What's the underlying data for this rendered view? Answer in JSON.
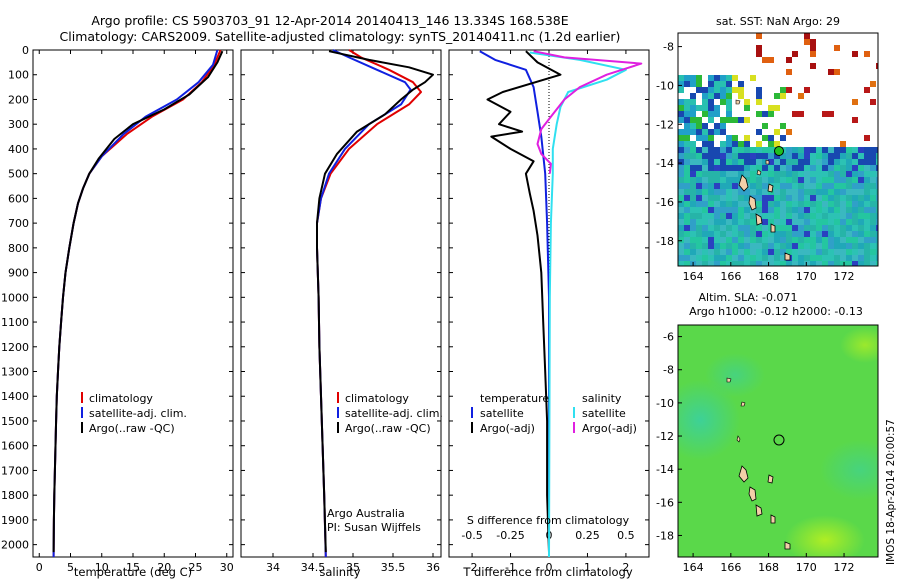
{
  "figure": {
    "title_line1": "Argo profile: CS 5903703_91 12-Apr-2014 20140413_146 13.334S 168.538E",
    "title_line2": "Climatology: CARS2009. Satellite-adjusted climatology: synTS_20140411.nc (1.2d earlier)",
    "credit_org": "Argo Australia",
    "credit_pi": "PI: Susan Wijffels",
    "timestamp": "IMOS 18-Apr-2014 20:00:57"
  },
  "colors": {
    "climatology": "#e00000",
    "satellite": "#1020e0",
    "argo": "#000000",
    "sat_salinity": "#30e0f0",
    "argo_salinity": "#e020e0"
  },
  "chart_data": [
    {
      "id": "temperature",
      "type": "line",
      "xlabel": "temperature (deg C)",
      "ylim": [
        2050,
        0
      ],
      "xlim": [
        -1,
        31
      ],
      "xticks": [
        0,
        5,
        10,
        15,
        20,
        25,
        30
      ],
      "yticks": [
        0,
        100,
        200,
        300,
        400,
        500,
        600,
        700,
        800,
        900,
        1000,
        1100,
        1200,
        1300,
        1400,
        1500,
        1600,
        1700,
        1800,
        1900,
        2000
      ],
      "legend": [
        "climatology",
        "satellite-adj. clim.",
        "Argo(..raw -QC)"
      ],
      "series": [
        {
          "name": "climatology",
          "color": "#e00000",
          "points": [
            [
              29,
              0
            ],
            [
              28,
              60
            ],
            [
              26,
              130
            ],
            [
              23,
              200
            ],
            [
              18,
              270
            ],
            [
              14,
              340
            ],
            [
              10,
              430
            ],
            [
              8,
              500
            ],
            [
              7,
              560
            ],
            [
              6.2,
              620
            ],
            [
              5.5,
              700
            ],
            [
              4.8,
              800
            ],
            [
              4.2,
              900
            ],
            [
              3.8,
              1000
            ],
            [
              3.5,
              1100
            ],
            [
              3.2,
              1200
            ],
            [
              3,
              1300
            ],
            [
              2.8,
              1400
            ],
            [
              2.7,
              1500
            ],
            [
              2.6,
              1600
            ],
            [
              2.5,
              1700
            ],
            [
              2.4,
              1800
            ],
            [
              2.35,
              1900
            ],
            [
              2.3,
              2050
            ]
          ]
        },
        {
          "name": "satellite-adj. clim.",
          "color": "#1020e0",
          "points": [
            [
              28.5,
              0
            ],
            [
              27.8,
              60
            ],
            [
              25.5,
              130
            ],
            [
              22,
              200
            ],
            [
              17,
              270
            ],
            [
              13.5,
              340
            ],
            [
              10,
              430
            ],
            [
              8,
              500
            ],
            [
              7,
              560
            ],
            [
              6.2,
              620
            ],
            [
              5.5,
              700
            ],
            [
              4.8,
              800
            ],
            [
              4.2,
              900
            ],
            [
              3.8,
              1000
            ],
            [
              3.5,
              1100
            ],
            [
              3.2,
              1200
            ],
            [
              3,
              1300
            ],
            [
              2.8,
              1400
            ],
            [
              2.7,
              1500
            ],
            [
              2.6,
              1600
            ],
            [
              2.5,
              1700
            ],
            [
              2.4,
              1800
            ],
            [
              2.35,
              1900
            ],
            [
              2.3,
              2050
            ]
          ]
        },
        {
          "name": "Argo(..raw -QC)",
          "color": "#000000",
          "points": [
            [
              29.3,
              5
            ],
            [
              28.5,
              50
            ],
            [
              27,
              110
            ],
            [
              24,
              180
            ],
            [
              20,
              240
            ],
            [
              15,
              300
            ],
            [
              12,
              360
            ],
            [
              9.5,
              440
            ],
            [
              8,
              500
            ],
            [
              7,
              560
            ],
            [
              6.2,
              620
            ],
            [
              5.5,
              700
            ],
            [
              4.8,
              800
            ],
            [
              4.2,
              900
            ],
            [
              3.8,
              1000
            ],
            [
              3.5,
              1100
            ],
            [
              3.2,
              1200
            ],
            [
              3,
              1300
            ],
            [
              2.8,
              1400
            ],
            [
              2.7,
              1500
            ],
            [
              2.6,
              1600
            ],
            [
              2.5,
              1700
            ],
            [
              2.4,
              1800
            ],
            [
              2.35,
              1900
            ],
            [
              2.3,
              2030
            ]
          ]
        }
      ]
    },
    {
      "id": "salinity",
      "type": "line",
      "xlabel": "salinity",
      "ylim": [
        2050,
        0
      ],
      "xlim": [
        33.6,
        36.1
      ],
      "xticks": [
        34,
        34.5,
        35,
        35.5,
        36
      ],
      "legend": [
        "climatology",
        "satellite-adj. clim.",
        "Argo(..raw -QC)"
      ],
      "series": [
        {
          "name": "climatology",
          "color": "#e00000",
          "points": [
            [
              34.95,
              0
            ],
            [
              35.1,
              30
            ],
            [
              35.45,
              80
            ],
            [
              35.75,
              130
            ],
            [
              35.85,
              170
            ],
            [
              35.7,
              220
            ],
            [
              35.3,
              300
            ],
            [
              34.95,
              400
            ],
            [
              34.72,
              500
            ],
            [
              34.6,
              600
            ],
            [
              34.55,
              700
            ],
            [
              34.55,
              800
            ],
            [
              34.56,
              900
            ],
            [
              34.57,
              1000
            ],
            [
              34.58,
              1200
            ],
            [
              34.6,
              1400
            ],
            [
              34.62,
              1600
            ],
            [
              34.64,
              1800
            ],
            [
              34.66,
              2050
            ]
          ]
        },
        {
          "name": "satellite-adj. clim.",
          "color": "#1020e0",
          "points": [
            [
              34.75,
              0
            ],
            [
              34.95,
              30
            ],
            [
              35.3,
              80
            ],
            [
              35.65,
              130
            ],
            [
              35.72,
              160
            ],
            [
              35.6,
              220
            ],
            [
              35.2,
              300
            ],
            [
              34.9,
              400
            ],
            [
              34.7,
              500
            ],
            [
              34.6,
              600
            ],
            [
              34.55,
              700
            ],
            [
              34.55,
              800
            ],
            [
              34.56,
              900
            ],
            [
              34.57,
              1000
            ],
            [
              34.58,
              1200
            ],
            [
              34.6,
              1400
            ],
            [
              34.62,
              1600
            ],
            [
              34.64,
              1800
            ],
            [
              34.66,
              2050
            ]
          ]
        },
        {
          "name": "Argo(..raw -QC)",
          "color": "#000000",
          "points": [
            [
              34.7,
              5
            ],
            [
              35.2,
              40
            ],
            [
              35.7,
              70
            ],
            [
              36,
              100
            ],
            [
              35.9,
              130
            ],
            [
              35.75,
              160
            ],
            [
              35.6,
              200
            ],
            [
              35.4,
              260
            ],
            [
              35.05,
              330
            ],
            [
              34.8,
              420
            ],
            [
              34.65,
              500
            ],
            [
              34.58,
              600
            ],
            [
              34.55,
              700
            ],
            [
              34.55,
              800
            ],
            [
              34.56,
              900
            ],
            [
              34.57,
              1000
            ],
            [
              34.58,
              1200
            ],
            [
              34.6,
              1400
            ],
            [
              34.62,
              1600
            ],
            [
              34.64,
              1800
            ],
            [
              34.66,
              2030
            ]
          ]
        }
      ]
    },
    {
      "id": "difference",
      "type": "line",
      "xlabel_bottom": "T difference from climatology",
      "xlabel_top": "S difference from climatology",
      "ylim": [
        2050,
        0
      ],
      "xlim": [
        -2.6,
        2.6
      ],
      "xticks_T": [
        -2,
        -1,
        0,
        1,
        2
      ],
      "xticks_S_labels": [
        "-0.5",
        "-0.25",
        "0",
        "0.25",
        "0.5"
      ],
      "xticks_S_positions": [
        -2,
        -1,
        0,
        1,
        2
      ],
      "legend": {
        "temperature_heading": "temperature",
        "salinity_heading": "salinity",
        "t_sat": "satellite",
        "t_argo": "Argo(-adj)",
        "s_sat": "satellite",
        "s_argo": "Argo(-adj)"
      },
      "series": [
        {
          "name": "T satellite",
          "color": "#1020e0",
          "points": [
            [
              -1.8,
              5
            ],
            [
              -1.4,
              40
            ],
            [
              -0.6,
              80
            ],
            [
              -0.4,
              150
            ],
            [
              -0.3,
              250
            ],
            [
              -0.2,
              350
            ],
            [
              -0.1,
              500
            ],
            [
              -0.05,
              700
            ],
            [
              0,
              1000
            ],
            [
              0,
              2050
            ]
          ]
        },
        {
          "name": "T Argo(-adj)",
          "color": "#000000",
          "points": [
            [
              -0.6,
              5
            ],
            [
              -0.3,
              50
            ],
            [
              0.3,
              100
            ],
            [
              -1.2,
              170
            ],
            [
              -1.6,
              200
            ],
            [
              -1,
              250
            ],
            [
              -1.3,
              300
            ],
            [
              -0.7,
              330
            ],
            [
              -1.5,
              350
            ],
            [
              -1,
              400
            ],
            [
              -0.4,
              450
            ],
            [
              -0.6,
              500
            ],
            [
              -0.5,
              580
            ],
            [
              -0.4,
              650
            ],
            [
              -0.3,
              750
            ],
            [
              -0.2,
              900
            ],
            [
              -0.15,
              1100
            ],
            [
              -0.1,
              1300
            ],
            [
              -0.05,
              1500
            ],
            [
              -0.05,
              1800
            ],
            [
              0,
              2030
            ]
          ]
        },
        {
          "name": "S satellite",
          "color": "#30e0f0",
          "points": [
            [
              -0.5,
              10
            ],
            [
              0.8,
              40
            ],
            [
              2,
              80
            ],
            [
              1.5,
              120
            ],
            [
              0.5,
              170
            ],
            [
              0.3,
              230
            ],
            [
              0.2,
              300
            ],
            [
              0.1,
              400
            ],
            [
              0.1,
              500
            ],
            [
              0.05,
              700
            ],
            [
              0.02,
              1000
            ],
            [
              0,
              2050
            ]
          ]
        },
        {
          "name": "S Argo(-adj)",
          "color": "#e020e0",
          "points": [
            [
              -0.4,
              5
            ],
            [
              0.4,
              30
            ],
            [
              2.4,
              55
            ],
            [
              1.5,
              100
            ],
            [
              0.8,
              150
            ],
            [
              0.4,
              200
            ],
            [
              0.1,
              260
            ],
            [
              -0.2,
              320
            ],
            [
              -0.3,
              380
            ],
            [
              -0.2,
              420
            ],
            [
              0.05,
              460
            ],
            [
              0.02,
              500
            ]
          ]
        }
      ]
    }
  ],
  "maps": {
    "sst": {
      "title": "sat. SST: NaN  Argo: 29",
      "xticks": [
        164,
        166,
        168,
        170,
        172
      ],
      "yticks": [
        -8,
        -10,
        -12,
        -14,
        -16,
        -18
      ]
    },
    "sla": {
      "title_line1": "Altim. SLA: -0.071",
      "title_line2": "Argo h1000: -0.12 h2000: -0.13",
      "xticks": [
        164,
        166,
        168,
        170,
        172
      ],
      "yticks": [
        -6,
        -8,
        -10,
        -12,
        -14,
        -16,
        -18
      ]
    }
  }
}
